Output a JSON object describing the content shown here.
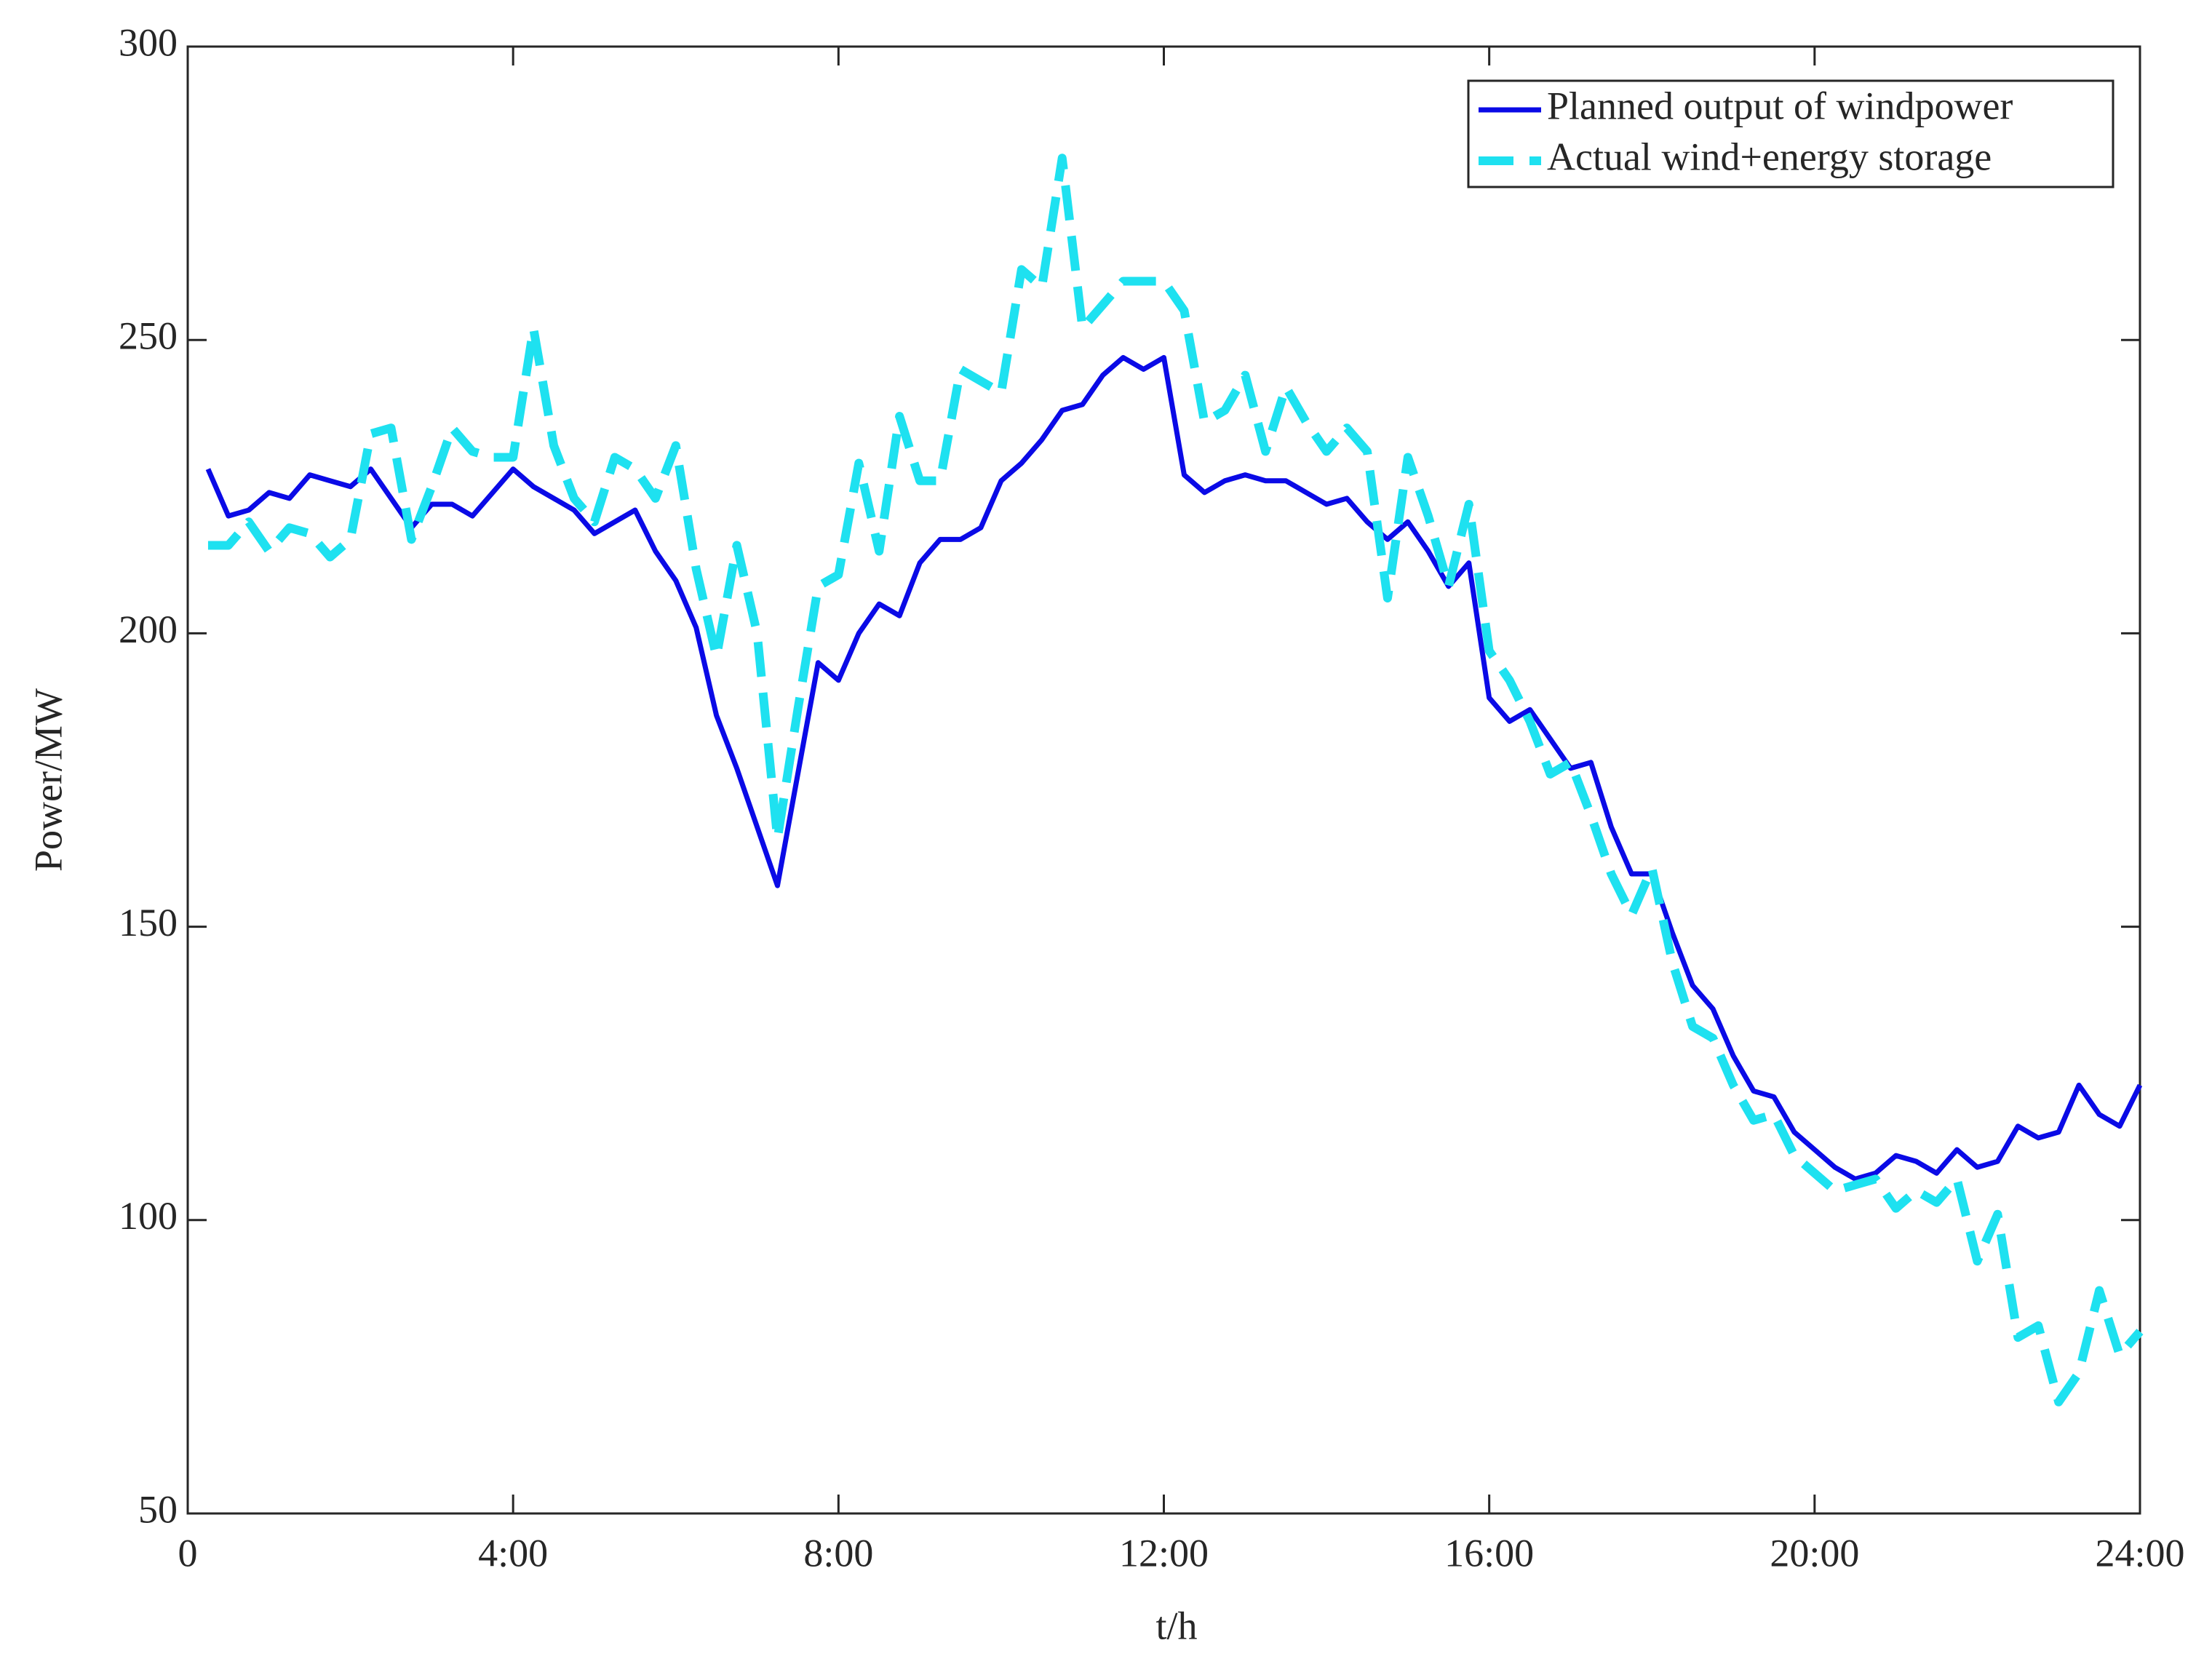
{
  "chart_data": {
    "type": "line",
    "xlabel": "t/h",
    "ylabel": "Power/MW",
    "xlim": [
      0,
      24
    ],
    "xticks": [
      0,
      {
        "value": 4,
        "label": "4:00"
      },
      {
        "value": 8,
        "label": "8:00"
      },
      {
        "value": 12,
        "label": "12:00"
      },
      {
        "value": 16,
        "label": "16:00"
      },
      {
        "value": 20,
        "label": "20:00"
      },
      {
        "value": 24,
        "label": "24:00"
      }
    ],
    "ylim": [
      50,
      300
    ],
    "yticks": [
      50,
      100,
      150,
      200,
      250,
      300
    ],
    "legend": "upper right",
    "x": [
      0.25,
      0.5,
      0.75,
      1,
      1.25,
      1.5,
      1.75,
      2,
      2.25,
      2.5,
      2.75,
      3,
      3.25,
      3.5,
      3.75,
      4,
      4.25,
      4.5,
      4.75,
      5,
      5.25,
      5.5,
      5.75,
      6,
      6.25,
      6.5,
      6.75,
      7,
      7.25,
      7.5,
      7.75,
      8,
      8.25,
      8.5,
      8.75,
      9,
      9.25,
      9.5,
      9.75,
      10,
      10.25,
      10.5,
      10.75,
      11,
      11.25,
      11.5,
      11.75,
      12,
      12.25,
      12.5,
      12.75,
      13,
      13.25,
      13.5,
      13.75,
      14,
      14.25,
      14.5,
      14.75,
      15,
      15.25,
      15.5,
      15.75,
      16,
      16.25,
      16.5,
      16.75,
      17,
      17.25,
      17.5,
      17.75,
      18,
      18.25,
      18.5,
      18.75,
      19,
      19.25,
      19.5,
      19.75,
      20,
      20.25,
      20.5,
      20.75,
      21,
      21.25,
      21.5,
      21.75,
      22,
      22.25,
      22.5,
      22.75,
      23,
      23.25,
      23.5,
      23.75,
      24
    ],
    "series": [
      {
        "name": "Planned output of windpower",
        "color": "#0a0ae6",
        "dash": false,
        "values": [
          228,
          220,
          221,
          224,
          223,
          227,
          226,
          225,
          228,
          223,
          218,
          222,
          222,
          220,
          224,
          228,
          225,
          223,
          221,
          217,
          219,
          221,
          214,
          209,
          201,
          186,
          177,
          167,
          157,
          176,
          195,
          192,
          200,
          205,
          203,
          212,
          216,
          216,
          218,
          226,
          229,
          233,
          238,
          239,
          244,
          247,
          245,
          247,
          227,
          224,
          226,
          227,
          226,
          226,
          224,
          222,
          223,
          219,
          216,
          219,
          214,
          208,
          212,
          189,
          185,
          187,
          182,
          177,
          178,
          167,
          159,
          159,
          149,
          140,
          136,
          128,
          122,
          121,
          115,
          112,
          109,
          107,
          108,
          111,
          110,
          108,
          112,
          109,
          110,
          116,
          114,
          115,
          123,
          118,
          116,
          123
        ]
      },
      {
        "name": "Actual wind+energy storage",
        "color": "#1ee1f0",
        "dash": true,
        "values": [
          215,
          215,
          219,
          214,
          218,
          217,
          213,
          216,
          234,
          235,
          216,
          225,
          235,
          231,
          230,
          230,
          252,
          232,
          223,
          219,
          230,
          228,
          223,
          232,
          211,
          196,
          215,
          200,
          165,
          187,
          208,
          210,
          229,
          214,
          237,
          226,
          226,
          245,
          243,
          241,
          262,
          259,
          281,
          252,
          256,
          260,
          260,
          260,
          255,
          236,
          238,
          244,
          231,
          242,
          236,
          231,
          235,
          231,
          206,
          230,
          220,
          208,
          222,
          197,
          192,
          185,
          176,
          178,
          169,
          159,
          152,
          160,
          144,
          133,
          131,
          123,
          117,
          118,
          111,
          108,
          105,
          106,
          107,
          102,
          105,
          103,
          107,
          93,
          101,
          80,
          82,
          69,
          74,
          88,
          77,
          81
        ]
      }
    ]
  }
}
